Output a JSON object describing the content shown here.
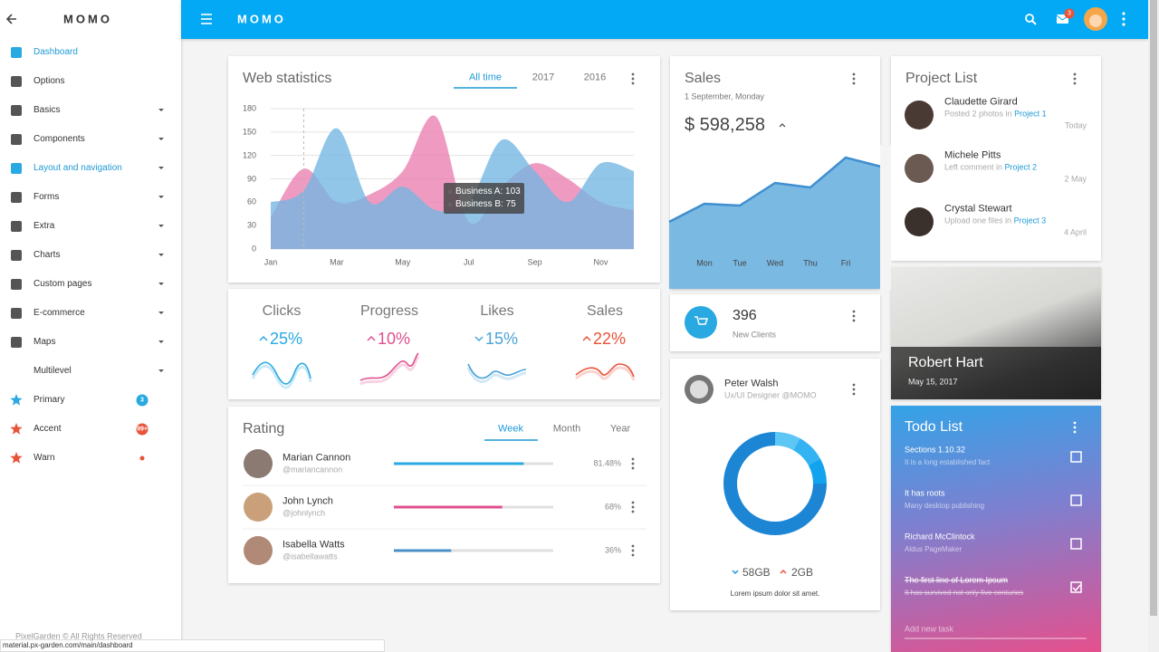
{
  "sidebar": {
    "title": "MOMO",
    "items": [
      {
        "label": "Dashboard",
        "active": true
      },
      {
        "label": "Options"
      },
      {
        "label": "Basics",
        "expandable": true
      },
      {
        "label": "Components",
        "expandable": true
      },
      {
        "label": "Layout and navigation",
        "active": true,
        "expandable": true
      },
      {
        "label": "Forms",
        "expandable": true
      },
      {
        "label": "Extra",
        "expandable": true
      },
      {
        "label": "Charts",
        "expandable": true
      },
      {
        "label": "Custom pages",
        "expandable": true
      },
      {
        "label": "E-commerce",
        "expandable": true
      },
      {
        "label": "Maps",
        "expandable": true
      },
      {
        "label": "Multilevel",
        "expandable": true
      },
      {
        "label": "Primary",
        "icon_color": "#29a9e1",
        "badge": "3",
        "badge_color": "#29a9e1"
      },
      {
        "label": "Accent",
        "icon_color": "#e8533a",
        "badge": "99+",
        "badge_color": "#e8533a"
      },
      {
        "label": "Warn",
        "icon_color": "#e8533a",
        "badge_color": "#e8533a"
      }
    ],
    "footer": "PixelGarden © All Rights Reserved"
  },
  "status_url": "material.px-garden.com/main/dashboard",
  "topbar": {
    "title": "MOMO",
    "mail_badge": "3"
  },
  "web_statistics": {
    "title": "Web statistics",
    "tabs": [
      "All time",
      "2017",
      "2016"
    ],
    "active_tab": 0,
    "chart_data": {
      "type": "area",
      "categories": [
        "Jan",
        null,
        "Mar",
        null,
        "May",
        null,
        "Jul",
        null,
        "Sep",
        null,
        "Nov",
        null
      ],
      "series": [
        {
          "name": "Business A",
          "color": "#ea7fb0",
          "values": [
            40,
            103,
            60,
            70,
            100,
            170,
            35,
            80,
            110,
            90,
            60,
            50
          ]
        },
        {
          "name": "Business B",
          "color": "#72b6e2",
          "values": [
            60,
            75,
            155,
            60,
            80,
            50,
            60,
            140,
            100,
            60,
            110,
            100
          ]
        }
      ],
      "ylim": [
        0,
        180
      ],
      "yticks": [
        0,
        30,
        60,
        90,
        120,
        150,
        180
      ],
      "grid": true,
      "tooltip_index": 1
    }
  },
  "stats": [
    {
      "label": "Clicks",
      "value": "25%",
      "trend": "up",
      "color": "#29a9e1"
    },
    {
      "label": "Progress",
      "value": "10%",
      "trend": "up",
      "color": "#e0508f"
    },
    {
      "label": "Likes",
      "value": "15%",
      "trend": "down",
      "color": "#4aa3d8"
    },
    {
      "label": "Sales",
      "value": "22%",
      "trend": "up",
      "color": "#e8533a"
    }
  ],
  "rating": {
    "title": "Rating",
    "tabs": [
      "Week",
      "Month",
      "Year"
    ],
    "active_tab": 0,
    "rows": [
      {
        "name": "Marian Cannon",
        "handle": "@mariancannon",
        "value": 81.48,
        "value_label": "81.48%",
        "color": "#29a9e1"
      },
      {
        "name": "John Lynch",
        "handle": "@johnlynch",
        "value": 68,
        "value_label": "68%",
        "color": "#e0508f"
      },
      {
        "name": "Isabella Watts",
        "handle": "@isabellawatts",
        "value": 36,
        "value_label": "36%",
        "color": "#4a90c8"
      }
    ]
  },
  "sales": {
    "title": "Sales",
    "date": "1 September, Monday",
    "total": "$ 598,258",
    "chart_data": {
      "type": "area",
      "categories": [
        null,
        "Mon",
        "Tue",
        "Wed",
        "Thu",
        "Fri",
        null
      ],
      "values": [
        37.5,
        47.5,
        46.5,
        59,
        56.5,
        73,
        68
      ],
      "ylim": [
        0,
        100
      ],
      "color": "#7ab9e2",
      "line_color": "#3f8fd0"
    }
  },
  "clients": {
    "value": 396,
    "label": "New Clients"
  },
  "profile": {
    "name": "Peter Walsh",
    "role": "Ux/UI Designer @MOMO",
    "chart_data": {
      "type": "donut",
      "values": [
        8,
        9,
        8,
        75
      ],
      "colors": [
        "#5cc6f5",
        "#34b3f2",
        "#12a3ee",
        "#1c86d4"
      ]
    },
    "down": "58GB",
    "up": "2GB",
    "caption": "Lorem ipsum dolor sit amet."
  },
  "project_list": {
    "title": "Project List",
    "items": [
      {
        "name": "Claudette Girard",
        "text": "Posted 2 photos in",
        "link": "Project 1",
        "time": "Today"
      },
      {
        "name": "Michele Pitts",
        "text": "Left comment in",
        "link": "Project 2",
        "time": "2 May"
      },
      {
        "name": "Crystal Stewart",
        "text": "Upload one files in",
        "link": "Project 3",
        "time": "4 April"
      }
    ]
  },
  "feature": {
    "name": "Robert Hart",
    "date": "May 15, 2017"
  },
  "todo": {
    "title": "Todo List",
    "items": [
      {
        "title": "Sections 1.10.32",
        "subtitle": "It is a long established fact",
        "done": false
      },
      {
        "title": "It has roots",
        "subtitle": "Many desktop publishing",
        "done": false
      },
      {
        "title": "Richard McClintock",
        "subtitle": "Aldus PageMaker",
        "done": false
      },
      {
        "title": "The first line of Lorem Ipsum",
        "subtitle": "It has survived not only five centuries",
        "done": true
      }
    ],
    "placeholder": "Add new task"
  }
}
